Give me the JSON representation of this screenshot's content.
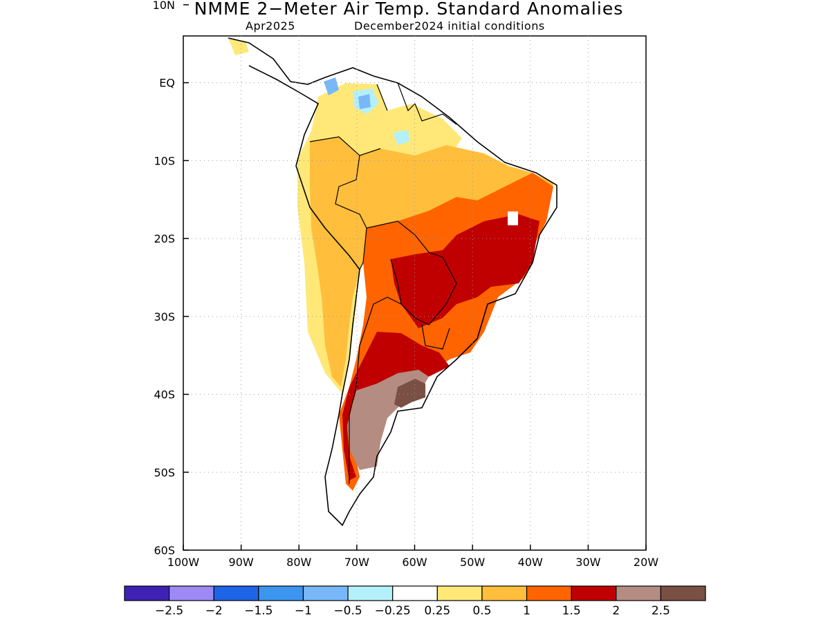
{
  "title": "NMME 2−Meter Air Temp. Standard Anomalies",
  "subtitle_valid": "Apr2025",
  "subtitle_init": "December2024 initial conditions",
  "map": {
    "lon_range": [
      -100,
      -20
    ],
    "lat_range": [
      -60,
      6
    ],
    "lon_ticks": [
      {
        "value": -100,
        "label": "100W"
      },
      {
        "value": -90,
        "label": "90W"
      },
      {
        "value": -80,
        "label": "80W"
      },
      {
        "value": -70,
        "label": "70W"
      },
      {
        "value": -60,
        "label": "60W"
      },
      {
        "value": -50,
        "label": "50W"
      },
      {
        "value": -40,
        "label": "40W"
      },
      {
        "value": -30,
        "label": "30W"
      },
      {
        "value": -20,
        "label": "20W"
      }
    ],
    "lat_ticks": [
      {
        "value": 10,
        "label": "10N"
      },
      {
        "value": 0,
        "label": "EQ"
      },
      {
        "value": -10,
        "label": "10S"
      },
      {
        "value": -20,
        "label": "20S"
      },
      {
        "value": -30,
        "label": "30S"
      },
      {
        "value": -40,
        "label": "40S"
      },
      {
        "value": -50,
        "label": "50S"
      },
      {
        "value": -60,
        "label": "60S"
      }
    ],
    "grid": "dotted"
  },
  "colorbar": {
    "colors": [
      "#3f22b4",
      "#9e8af4",
      "#1e64e6",
      "#3c96f0",
      "#78b8f8",
      "#b4f0fa",
      "#ffffff",
      "#ffe878",
      "#ffbe3c",
      "#ff6400",
      "#c00000",
      "#b48c82",
      "#7a5044"
    ],
    "labels": [
      "−2.5",
      "−2",
      "−1.5",
      "−1",
      "−0.5",
      "−0.25",
      "0.25",
      "0.5",
      "1",
      "1.5",
      "2",
      "2.5"
    ]
  },
  "colors": {
    "anom_025_05": "#ffe878",
    "anom_05_1": "#ffbe3c",
    "anom_1_15": "#ff6400",
    "anom_15_2": "#c00000",
    "anom_2_25": "#b48c82",
    "anom_gt_25": "#7a5044",
    "anom_neg_025_05": "#b4f0fa",
    "anom_neg_05_1": "#78b8f8",
    "anom_neg_1_15": "#3c96f0"
  }
}
